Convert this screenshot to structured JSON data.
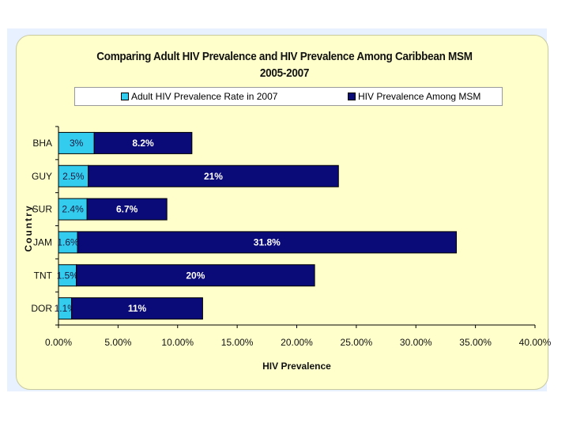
{
  "chart_data": {
    "type": "bar",
    "orientation": "horizontal",
    "stacked": true,
    "title": "Comparing Adult HIV Prevalence and HIV Prevalence Among Caribbean MSM",
    "subtitle": "2005-2007",
    "xlabel": "HIV Prevalence",
    "ylabel": "Country",
    "xlim": [
      0,
      0.4
    ],
    "x_ticks": [
      "0.00%",
      "5.00%",
      "10.00%",
      "15.00%",
      "20.00%",
      "25.00%",
      "30.00%",
      "35.00%",
      "40.00%"
    ],
    "categories": [
      "BHA",
      "GUY",
      "SUR",
      "JAM",
      "TNT",
      "DOR"
    ],
    "legend_position": "top",
    "series": [
      {
        "name": "Adult HIV Prevalence Rate in 2007",
        "color": "#33ccee",
        "values": [
          0.03,
          0.025,
          0.024,
          0.016,
          0.015,
          0.011
        ],
        "labels": [
          "3%",
          "2.5%",
          "2.4%",
          "1.6%",
          "1.5%",
          "1.1%"
        ]
      },
      {
        "name": "HIV Prevalence Among MSM",
        "color": "#0a0a78",
        "values": [
          0.082,
          0.21,
          0.067,
          0.318,
          0.2,
          0.11
        ],
        "labels": [
          "8.2%",
          "21%",
          "6.7%",
          "31.8%",
          "20%",
          "11%"
        ]
      }
    ]
  }
}
